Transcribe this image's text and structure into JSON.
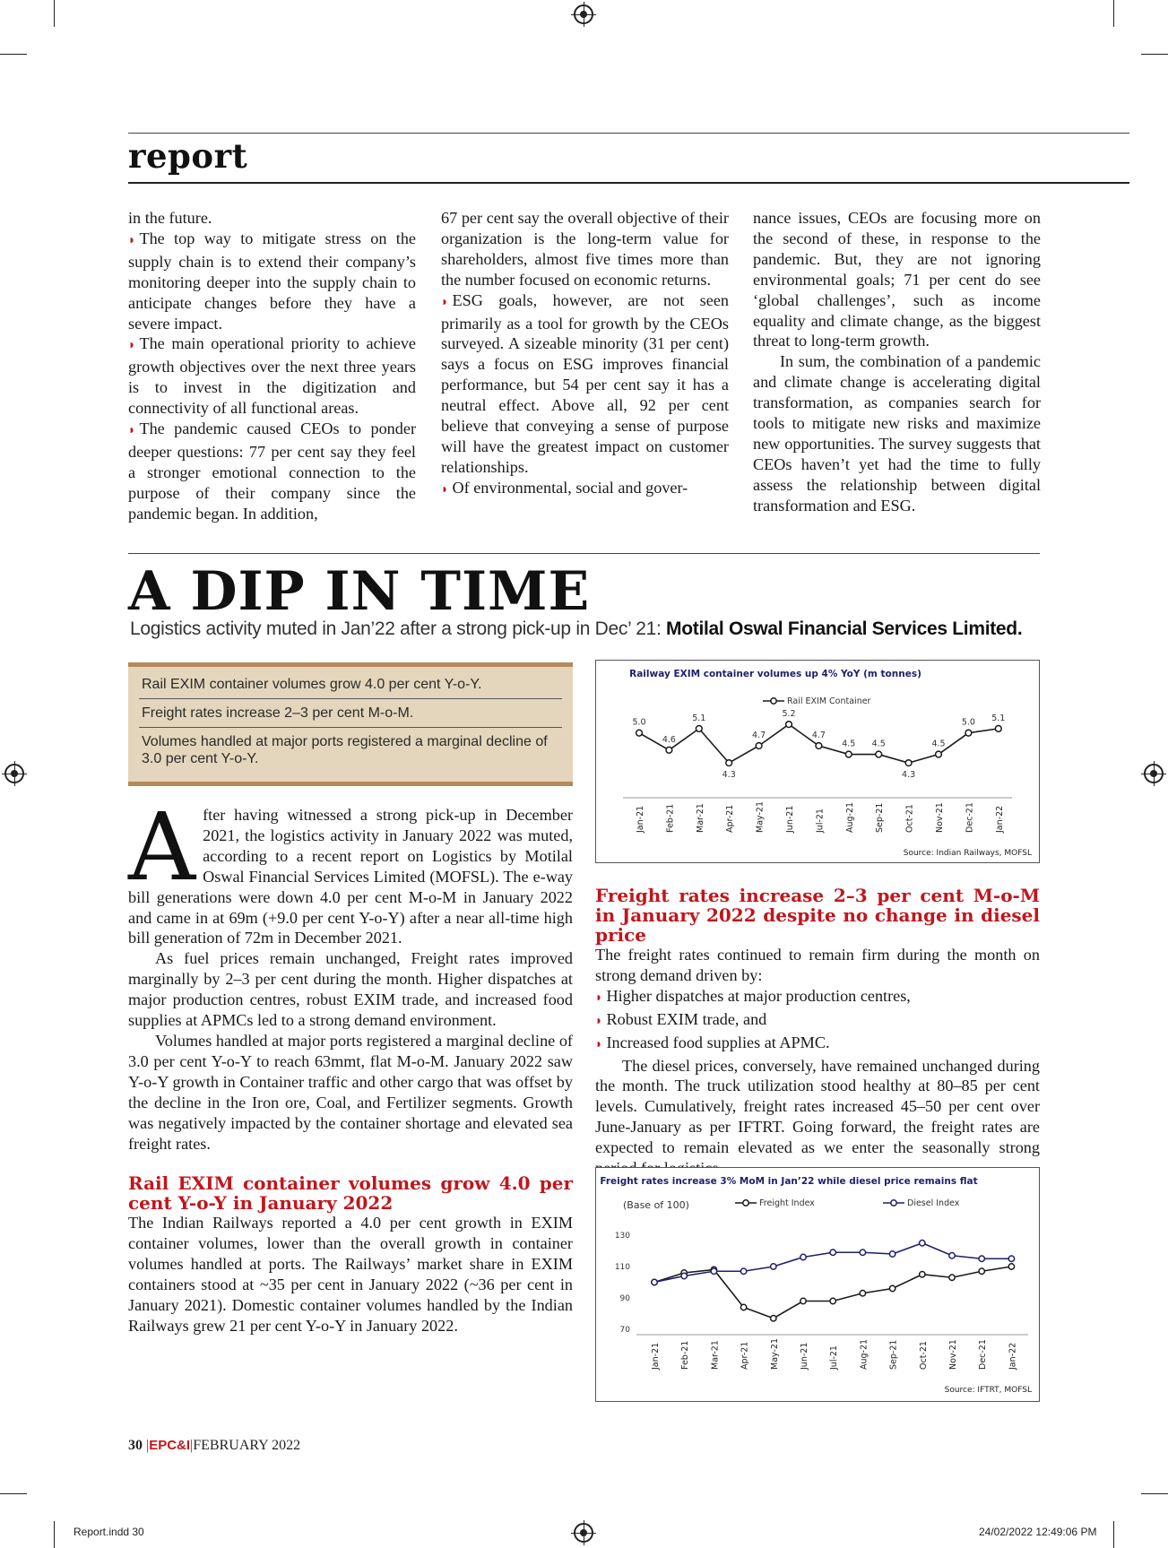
{
  "section": "report",
  "columns_top": {
    "col1": [
      {
        "bullet": false,
        "text": "in the future."
      },
      {
        "bullet": true,
        "text": "The top way to mitigate stress on the supply chain is to extend their company’s monitoring deeper into the supply chain to anticipate changes before they have a severe impact."
      },
      {
        "bullet": true,
        "text": "The main operational priority to achieve growth objectives over the next three years is to invest in the digitization and connectivity of all functional areas."
      },
      {
        "bullet": true,
        "text": "The pandemic caused CEOs to ponder deeper questions: 77 per cent say they feel a stronger emotional connection to the purpose of their company since the pandemic began. In addition,"
      }
    ],
    "col2": [
      {
        "bullet": false,
        "text": "67 per cent say the overall objective of their organization is the long-term value for shareholders, almost five times more than the number focused on economic returns."
      },
      {
        "bullet": true,
        "text": "ESG goals, however, are not seen primarily as a tool for growth by the CEOs surveyed. A sizeable minority (31 per cent) says a focus on ESG improves financial performance, but 54 per cent say it has a neutral effect. Above all, 92 per cent believe that conveying a sense of purpose will have the greatest impact on customer relationships."
      },
      {
        "bullet": true,
        "text": "Of environmental, social and gover-"
      }
    ],
    "col3": [
      {
        "bullet": false,
        "indent": false,
        "text": "nance issues, CEOs are focusing more on the second of these, in response to the pandemic. But, they are not ignoring environmental goals; 71 per cent do see ‘global challenges’, such as income equality and climate change, as the biggest threat to long-term growth."
      },
      {
        "bullet": false,
        "indent": true,
        "text": "In sum, the combination of a pandemic and climate change is accelerating digital transformation, as companies search for tools to mitigate new risks and maximize new opportunities. The survey suggests that CEOs haven’t yet had the time to fully assess the relationship between digital transformation and ESG."
      }
    ]
  },
  "article": {
    "headline": "A DIP IN TIME",
    "subhead": "Logistics activity muted in Jan’22 after a strong pick-up in Dec’ 21: ",
    "subhead_source": "Motilal Oswal Financial Services Limited.",
    "highlights": [
      "Rail EXIM container volumes grow 4.0 per cent Y-o-Y.",
      "Freight rates increase 2–3 per cent M-o-M.",
      "Volumes handled at major ports registered a marginal decline of 3.0 per cent Y-o-Y."
    ],
    "dropcap": "A",
    "para1": "fter having witnessed a strong pick-up in December 2021, the logistics activity in January 2022 was muted, according to a recent report on Logistics by Motilal Oswal Financial Services Limited (MOFSL). The e-way bill generations were down 4.0 per cent M-o-M in January 2022 and came in at 69m (+9.0 per cent Y-o-Y) after a near all-time high bill generation of 72m in December 2021.",
    "para2": "As fuel prices remain unchanged, Freight rates improved marginally by 2–3 per cent during the month. Higher dispatches at major production centres, robust EXIM trade, and increased food supplies at APMCs led to a strong demand environment.",
    "para3": "Volumes handled at major ports registered a marginal decline of 3.0 per cent Y-o-Y to reach 63mmt, flat M-o-M. January 2022 saw Y-o-Y growth in Container traffic and other cargo that was offset by the decline in the Iron ore, Coal, and Fertilizer segments. Growth was negatively impacted by the container shortage and elevated sea freight rates.",
    "rail_heading": "Rail EXIM container volumes grow 4.0 per cent Y-o-Y in January 2022",
    "rail_para": "The Indian Railways reported a 4.0 per cent growth in EXIM container volumes, lower than the overall growth in container volumes handled at ports. The Railways’ market share in EXIM containers stood at ~35 per cent in January 2022 (~36 per cent in January 2021). Domestic container volumes handled by the Indian Railways grew 21 per cent Y-o-Y in January 2022.",
    "freight_heading": "Freight rates increase 2–3 per cent M-o-M in January 2022 despite no change in diesel price",
    "freight_intro": "The freight rates continued to remain firm during the month on strong demand driven by:",
    "freight_bullets": [
      "Higher dispatches at major production centres,",
      "Robust EXIM trade, and",
      "Increased food supplies at APMC."
    ],
    "freight_para": "The diesel prices, conversely, have remained unchanged during the month. The truck utilization stood healthy at 80–85 per cent levels. Cumulatively, freight rates increased 45–50 per cent over June-January as per IFTRT. Going forward, the freight rates are expected to remain elevated as we enter the seasonally strong period for logistics."
  },
  "chart_data": [
    {
      "type": "line",
      "title": "Railway EXIM container volumes up 4% YoY (m tonnes)",
      "categories": [
        "Jan-21",
        "Feb-21",
        "Mar-21",
        "Apr-21",
        "May-21",
        "Jun-21",
        "Jul-21",
        "Aug-21",
        "Sep-21",
        "Oct-21",
        "Nov-21",
        "Dec-21",
        "Jan-22"
      ],
      "series": [
        {
          "name": "Rail EXIM Container",
          "values": [
            5.0,
            4.6,
            5.1,
            4.3,
            4.7,
            5.2,
            4.7,
            4.5,
            4.5,
            4.3,
            4.5,
            5.0,
            5.1
          ]
        }
      ],
      "data_labels": [
        "5.0",
        "4.6",
        "5.1",
        "4.3",
        "4.7",
        "5.2",
        "4.7",
        "4.5",
        "4.5",
        "4.3",
        "4.5",
        "5.0",
        "5.1"
      ],
      "grid": false,
      "legend": "top-center",
      "source": "Source: Indian Railways, MOFSL",
      "color": "#1a1a1a"
    },
    {
      "type": "line",
      "title": "Freight rates increase 3% MoM in Jan’22 while diesel price remains flat",
      "note": "(Base of 100)",
      "categories": [
        "Jan-21",
        "Feb-21",
        "Mar-21",
        "Apr-21",
        "May-21",
        "Jun-21",
        "Jul-21",
        "Aug-21",
        "Sep-21",
        "Oct-21",
        "Nov-21",
        "Dec-21",
        "Jan-22"
      ],
      "series": [
        {
          "name": "Freight Index",
          "values": [
            100,
            106,
            108,
            84,
            77,
            88,
            88,
            93,
            96,
            105,
            103,
            107,
            110
          ],
          "color": "#1a1a1a"
        },
        {
          "name": "Diesel Index",
          "values": [
            100,
            104,
            107,
            107,
            110,
            116,
            119,
            119,
            118,
            125,
            117,
            115,
            115
          ],
          "color": "#1f1f6e"
        }
      ],
      "yticks": [
        70,
        90,
        110,
        130
      ],
      "ylim": [
        65,
        135
      ],
      "grid": false,
      "legend": "top",
      "source": "Source: IFTRT, MOFSL"
    }
  ],
  "chart_title_color": "#1f1f6e",
  "accent_color": "#c0161c",
  "footer": {
    "page": "30",
    "brand": "EPC&I",
    "issue": "FEBRUARY 2022"
  },
  "slug": {
    "file": "Report.indd   30",
    "timestamp": "24/02/2022   12:49:06 PM"
  }
}
